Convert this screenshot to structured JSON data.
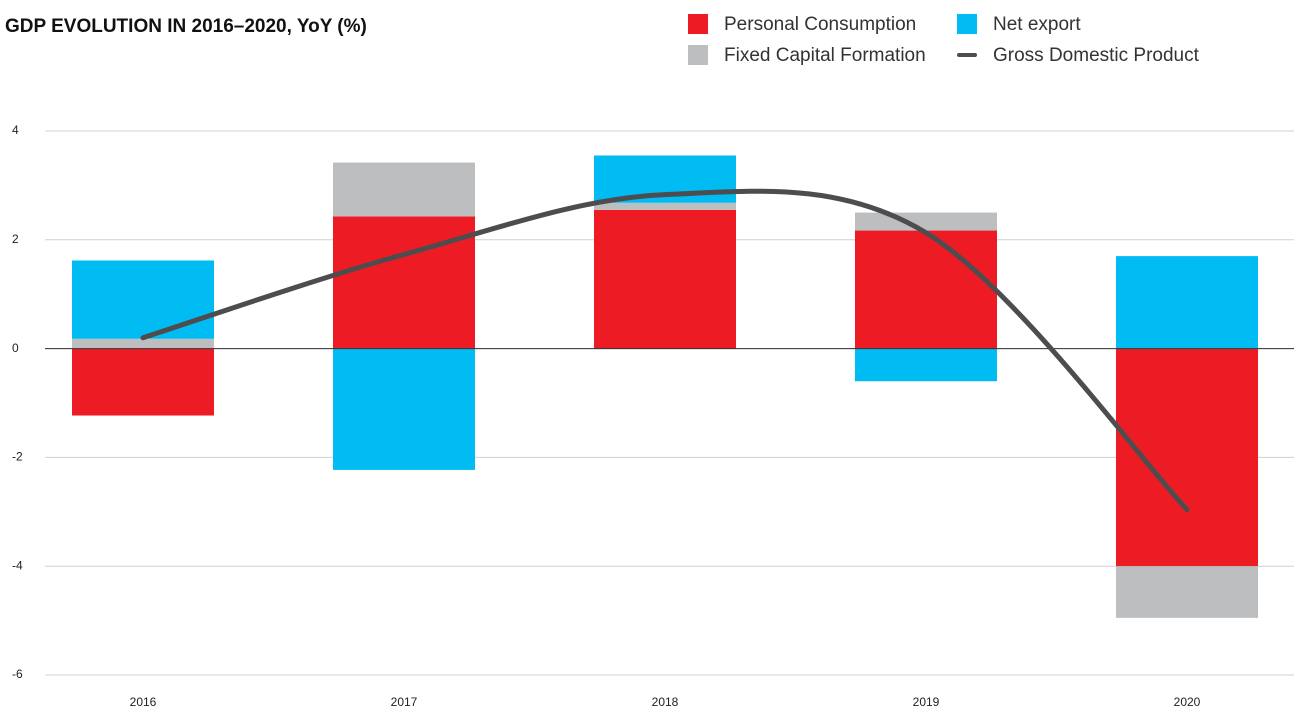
{
  "chart_data": {
    "type": "bar",
    "stacked": true,
    "title": "GDP EVOLUTION IN 2016–2020, YoY (%)",
    "categories": [
      "2016",
      "2017",
      "2018",
      "2019",
      "2020"
    ],
    "series": [
      {
        "name": "Personal Consumption",
        "color": "#ed1c24",
        "values": [
          -1.23,
          2.43,
          2.55,
          2.17,
          -4.0
        ]
      },
      {
        "name": "Fixed Capital Formation",
        "color": "#bcbec0",
        "values": [
          0.18,
          0.99,
          0.13,
          0.33,
          -0.95
        ]
      },
      {
        "name": "Net export",
        "color": "#00bcf2",
        "values": [
          1.44,
          -2.23,
          0.87,
          -0.6,
          1.7
        ]
      },
      {
        "name": "Gross Domestic Product",
        "color": "#4d4d4f",
        "type": "line",
        "values": [
          0.2,
          1.73,
          2.83,
          2.13,
          -2.96
        ]
      }
    ],
    "ylim": [
      -6,
      4
    ],
    "yticks": [
      -6,
      -4,
      -2,
      0,
      2,
      4
    ],
    "grid": true
  }
}
